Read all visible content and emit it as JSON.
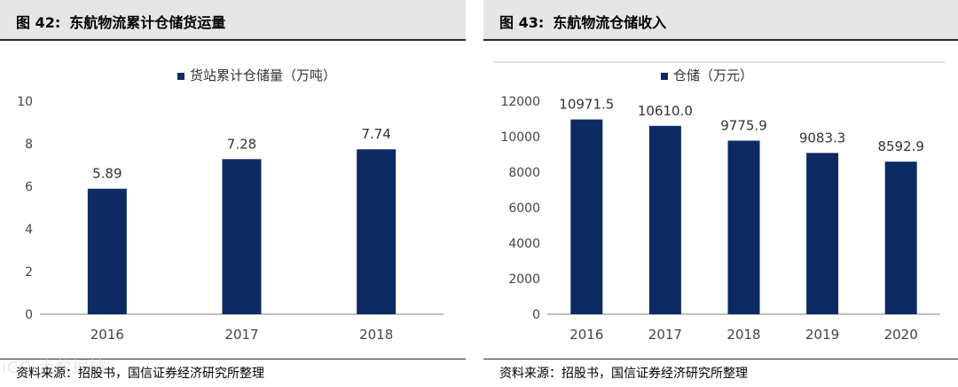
{
  "figures": [
    {
      "label": "图 42:",
      "title": "东航物流累计仓储货运量",
      "source": "资料来源：招股书，国信证券经济研究所整理",
      "chart_data": {
        "type": "bar",
        "categories": [
          "2016",
          "2017",
          "2018"
        ],
        "series": [
          {
            "name": "货站累计仓储量（万吨）",
            "values": [
              5.89,
              7.28,
              7.74
            ]
          }
        ],
        "data_labels": [
          "5.89",
          "7.28",
          "7.74"
        ],
        "ylim": [
          0,
          10
        ],
        "yticks": [
          0,
          2,
          4,
          6,
          8,
          10
        ],
        "grid": false,
        "legend": "top-center",
        "bar_color": "#0d2a63"
      }
    },
    {
      "label": "图 43:",
      "title": "东航物流仓储收入",
      "source": "资料来源：招股书，国信证券经济研究所整理",
      "chart_data": {
        "type": "bar",
        "categories": [
          "2016",
          "2017",
          "2018",
          "2019",
          "2020"
        ],
        "series": [
          {
            "name": "仓储（万元）",
            "values": [
              10971.5,
              10610.0,
              9775.9,
              9083.3,
              8592.9
            ]
          }
        ],
        "data_labels": [
          "10971.5",
          "10610.0",
          "9775.9",
          "9083.3",
          "8592.9"
        ],
        "ylim": [
          0,
          12000
        ],
        "yticks": [
          0,
          2000,
          4000,
          6000,
          8000,
          10000,
          12000
        ],
        "grid": false,
        "legend": "top-center",
        "bar_color": "#0d2a63"
      }
    }
  ]
}
